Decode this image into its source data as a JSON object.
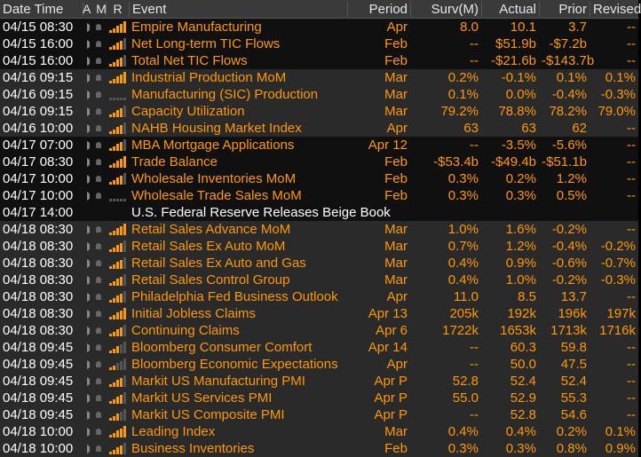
{
  "header": {
    "date_time": "Date Time",
    "a": "A",
    "m": "M",
    "r": "R",
    "event": "Event",
    "period": "Period",
    "surv": "Surv(M)",
    "actual": "Actual",
    "prior": "Prior",
    "revised": "Revised"
  },
  "icons": {
    "alert": "speaker-icon",
    "bell": "bell-icon",
    "relevance": "relevance-bars-icon"
  },
  "colors": {
    "accent": "#ff9900",
    "date": "#ffffff",
    "header_bg": "#3a3a3a"
  },
  "rows": [
    {
      "dt": "04/15 08:30",
      "rel": 5,
      "event": "Empire Manufacturing",
      "period": "Apr",
      "surv": "8.0",
      "actual": "10.1",
      "prior": "3.7",
      "revised": "--",
      "group": 0
    },
    {
      "dt": "04/15 16:00",
      "rel": 4,
      "event": "Net Long-term TIC Flows",
      "period": "Feb",
      "surv": "--",
      "actual": "$51.9b",
      "prior": "-$7.2b",
      "revised": "--",
      "group": 0
    },
    {
      "dt": "04/15 16:00",
      "rel": 4,
      "event": "Total Net TIC Flows",
      "period": "Feb",
      "surv": "--",
      "actual": "-$21.6b",
      "prior": "-$143.7b",
      "revised": "--",
      "group": 0
    },
    {
      "dt": "04/16 09:15",
      "rel": 5,
      "event": "Industrial Production MoM",
      "period": "Mar",
      "surv": "0.2%",
      "actual": "-0.1%",
      "prior": "0.1%",
      "revised": "0.1%",
      "group": 1
    },
    {
      "dt": "04/16 09:15",
      "rel": 0,
      "event": "Manufacturing (SIC) Production",
      "period": "Mar",
      "surv": "0.1%",
      "actual": "0.0%",
      "prior": "-0.4%",
      "revised": "-0.3%",
      "group": 1
    },
    {
      "dt": "04/16 09:15",
      "rel": 4,
      "event": "Capacity Utilization",
      "period": "Mar",
      "surv": "79.2%",
      "actual": "78.8%",
      "prior": "78.2%",
      "revised": "79.0%",
      "group": 1
    },
    {
      "dt": "04/16 10:00",
      "rel": 4,
      "event": "NAHB Housing Market Index",
      "period": "Apr",
      "surv": "63",
      "actual": "63",
      "prior": "62",
      "revised": "--",
      "group": 1
    },
    {
      "dt": "04/17 07:00",
      "rel": 4,
      "event": "MBA Mortgage Applications",
      "period": "Apr 12",
      "surv": "--",
      "actual": "-3.5%",
      "prior": "-5.6%",
      "revised": "--",
      "group": 0
    },
    {
      "dt": "04/17 08:30",
      "rel": 5,
      "event": "Trade Balance",
      "period": "Feb",
      "surv": "-$53.4b",
      "actual": "-$49.4b",
      "prior": "-$51.1b",
      "revised": "--",
      "group": 0
    },
    {
      "dt": "04/17 10:00",
      "rel": 4,
      "event": "Wholesale Inventories MoM",
      "period": "Feb",
      "surv": "0.3%",
      "actual": "0.2%",
      "prior": "1.2%",
      "revised": "--",
      "group": 0
    },
    {
      "dt": "04/17 10:00",
      "rel": 0,
      "event": "Wholesale Trade Sales MoM",
      "period": "Feb",
      "surv": "0.3%",
      "actual": "0.3%",
      "prior": "0.5%",
      "revised": "--",
      "group": 0
    },
    {
      "dt": "04/17 14:00",
      "rel": -1,
      "event": "U.S. Federal Reserve Releases Beige Book",
      "period": "",
      "surv": "",
      "actual": "",
      "prior": "",
      "revised": "",
      "group": 0,
      "beige": true
    },
    {
      "dt": "04/18 08:30",
      "rel": 5,
      "event": "Retail Sales Advance MoM",
      "period": "Mar",
      "surv": "1.0%",
      "actual": "1.6%",
      "prior": "-0.2%",
      "revised": "--",
      "group": 1
    },
    {
      "dt": "04/18 08:30",
      "rel": 4,
      "event": "Retail Sales Ex Auto MoM",
      "period": "Mar",
      "surv": "0.7%",
      "actual": "1.2%",
      "prior": "-0.4%",
      "revised": "-0.2%",
      "group": 1
    },
    {
      "dt": "04/18 08:30",
      "rel": 4,
      "event": "Retail Sales Ex Auto and Gas",
      "period": "Mar",
      "surv": "0.4%",
      "actual": "0.9%",
      "prior": "-0.6%",
      "revised": "-0.7%",
      "group": 1
    },
    {
      "dt": "04/18 08:30",
      "rel": 4,
      "event": "Retail Sales Control Group",
      "period": "Mar",
      "surv": "0.4%",
      "actual": "1.0%",
      "prior": "-0.2%",
      "revised": "-0.3%",
      "group": 1
    },
    {
      "dt": "04/18 08:30",
      "rel": 4,
      "event": "Philadelphia Fed Business Outlook",
      "period": "Apr",
      "surv": "11.0",
      "actual": "8.5",
      "prior": "13.7",
      "revised": "--",
      "group": 1
    },
    {
      "dt": "04/18 08:30",
      "rel": 5,
      "event": "Initial Jobless Claims",
      "period": "Apr 13",
      "surv": "205k",
      "actual": "192k",
      "prior": "196k",
      "revised": "197k",
      "group": 1
    },
    {
      "dt": "04/18 08:30",
      "rel": 4,
      "event": "Continuing Claims",
      "period": "Apr 6",
      "surv": "1722k",
      "actual": "1653k",
      "prior": "1713k",
      "revised": "1716k",
      "group": 1
    },
    {
      "dt": "04/18 09:45",
      "rel": 3,
      "event": "Bloomberg Consumer Comfort",
      "period": "Apr 14",
      "surv": "--",
      "actual": "60.3",
      "prior": "59.8",
      "revised": "--",
      "group": 1
    },
    {
      "dt": "04/18 09:45",
      "rel": 2,
      "event": "Bloomberg Economic Expectations",
      "period": "Apr",
      "surv": "--",
      "actual": "50.0",
      "prior": "47.5",
      "revised": "--",
      "group": 1
    },
    {
      "dt": "04/18 09:45",
      "rel": 4,
      "event": "Markit US Manufacturing PMI",
      "period": "Apr P",
      "surv": "52.8",
      "actual": "52.4",
      "prior": "52.4",
      "revised": "--",
      "group": 1
    },
    {
      "dt": "04/18 09:45",
      "rel": 4,
      "event": "Markit US Services PMI",
      "period": "Apr P",
      "surv": "55.0",
      "actual": "52.9",
      "prior": "55.3",
      "revised": "--",
      "group": 1
    },
    {
      "dt": "04/18 09:45",
      "rel": 3,
      "event": "Markit US Composite PMI",
      "period": "Apr P",
      "surv": "--",
      "actual": "52.8",
      "prior": "54.6",
      "revised": "--",
      "group": 1
    },
    {
      "dt": "04/18 10:00",
      "rel": 5,
      "event": "Leading Index",
      "period": "Mar",
      "surv": "0.4%",
      "actual": "0.4%",
      "prior": "0.2%",
      "revised": "0.1%",
      "group": 1
    },
    {
      "dt": "04/18 10:00",
      "rel": 4,
      "event": "Business Inventories",
      "period": "Feb",
      "surv": "0.3%",
      "actual": "0.3%",
      "prior": "0.8%",
      "revised": "0.9%",
      "group": 1
    }
  ]
}
